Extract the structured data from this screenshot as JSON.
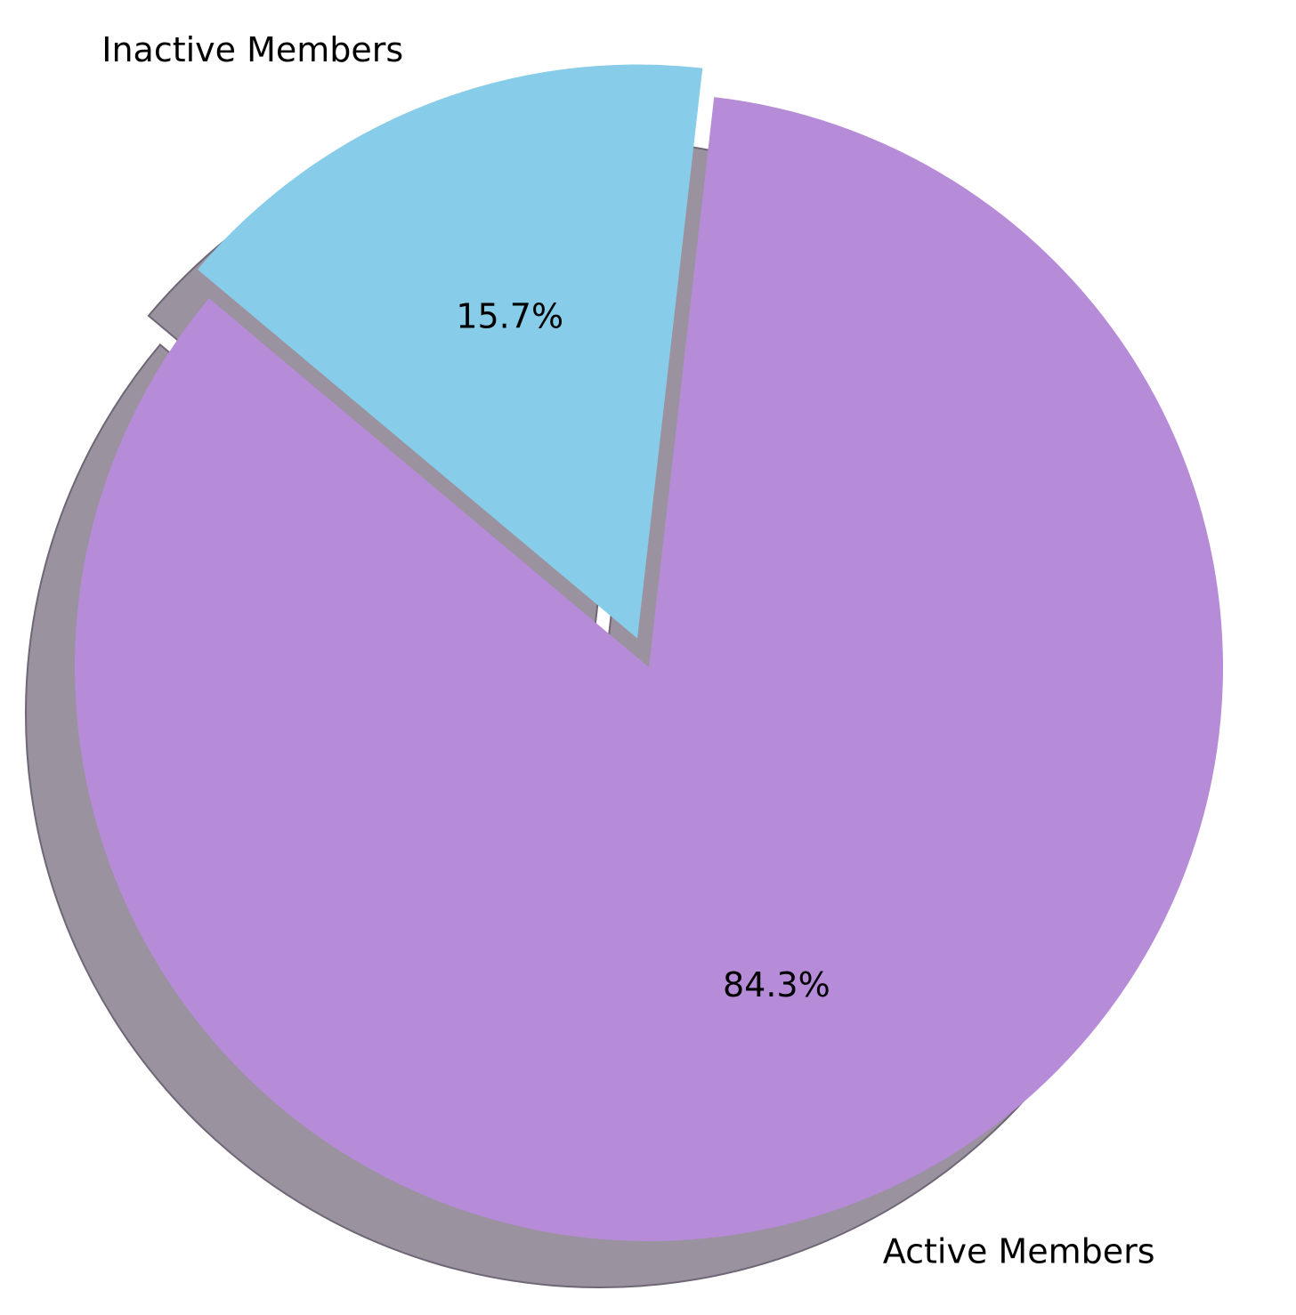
{
  "chart_data": {
    "type": "pie",
    "title": "",
    "slices": [
      {
        "label": "Active Members",
        "value": 84.3,
        "pct_label": "84.3%",
        "color": "#b68bd8",
        "explode": false
      },
      {
        "label": "Inactive Members",
        "value": 15.7,
        "pct_label": "15.7%",
        "color": "#87cce8",
        "explode": true
      }
    ],
    "shadow": true,
    "shadow_color": "#9b929f",
    "start_angle_deg": 140
  }
}
